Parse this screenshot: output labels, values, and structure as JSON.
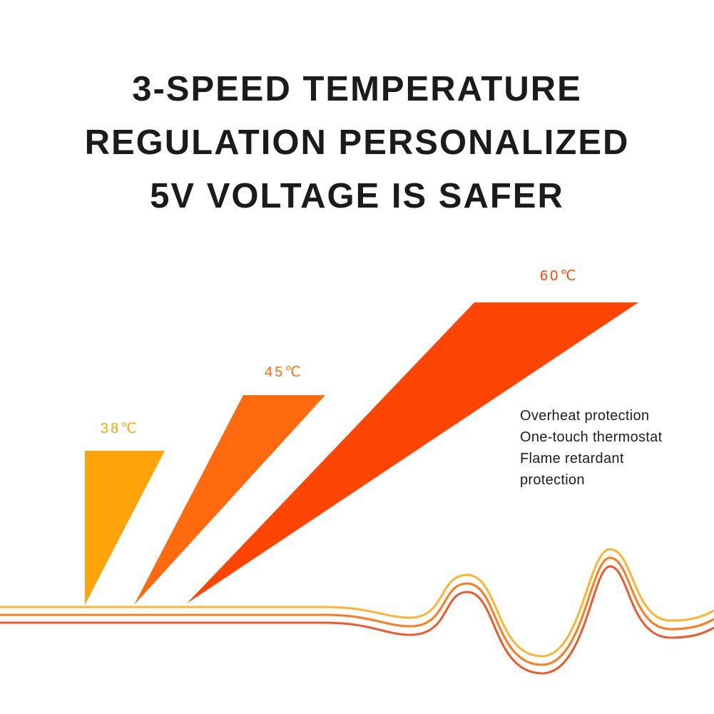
{
  "headline": {
    "lines": [
      "3-SPEED TEMPERATURE",
      "REGULATION PERSONALIZED",
      "5V VOLTAGE IS SAFER"
    ]
  },
  "levels": [
    {
      "label": "38℃",
      "color": "#FCA40A"
    },
    {
      "label": "45℃",
      "color": "#FF6A0E"
    },
    {
      "label": "60℃",
      "color": "#FF4503"
    }
  ],
  "features": [
    "Overheat protection",
    "One-touch thermostat",
    "Flame retardant",
    "protection"
  ],
  "wave_colors": {
    "top": "#FCB431",
    "middle": "#FF7A1A",
    "bottom": "#F2562B"
  }
}
